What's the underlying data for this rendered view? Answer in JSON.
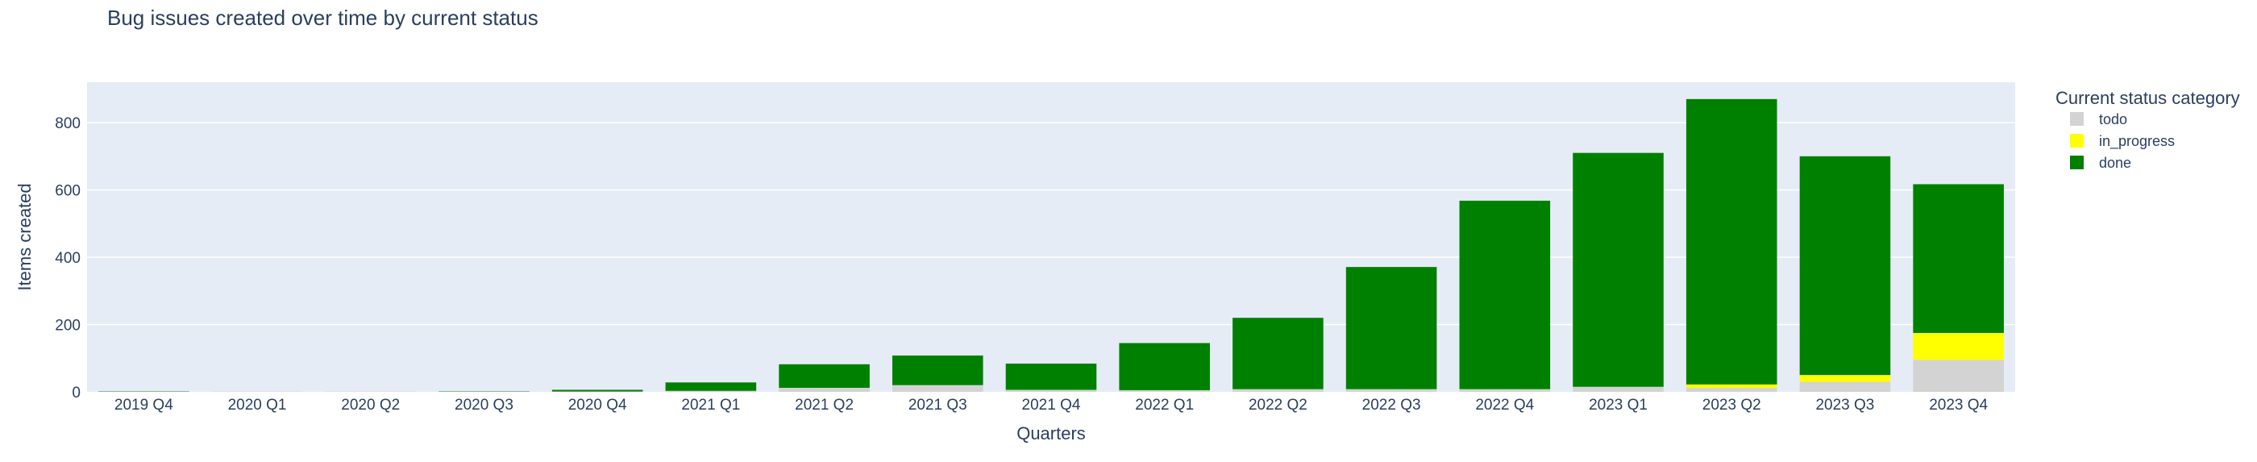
{
  "chart_data": {
    "type": "bar",
    "stacked": true,
    "title": "Bug issues created over time by current status",
    "xlabel": "Quarters",
    "ylabel": "Items created",
    "ylim": [
      0,
      920
    ],
    "yticks": [
      0,
      200,
      400,
      600,
      800
    ],
    "grid": true,
    "legend_title": "Current status category",
    "legend_position": "right",
    "categories": [
      "2019 Q4",
      "2020 Q1",
      "2020 Q2",
      "2020 Q3",
      "2020 Q4",
      "2021 Q1",
      "2021 Q2",
      "2021 Q3",
      "2021 Q4",
      "2022 Q1",
      "2022 Q2",
      "2022 Q3",
      "2022 Q4",
      "2023 Q1",
      "2023 Q2",
      "2023 Q3",
      "2023 Q4"
    ],
    "series": [
      {
        "name": "todo",
        "color": "#d3d3d3",
        "values": [
          0,
          1,
          1,
          0,
          1,
          3,
          12,
          20,
          6,
          5,
          8,
          8,
          8,
          15,
          12,
          30,
          95
        ]
      },
      {
        "name": "in_progress",
        "color": "#ffff00",
        "values": [
          0,
          0,
          0,
          0,
          0,
          0,
          0,
          0,
          0,
          0,
          0,
          0,
          0,
          0,
          10,
          20,
          80
        ]
      },
      {
        "name": "done",
        "color": "#008000",
        "values": [
          1,
          0,
          0,
          1,
          5,
          25,
          70,
          88,
          78,
          140,
          212,
          363,
          560,
          695,
          848,
          650,
          442
        ]
      }
    ]
  }
}
